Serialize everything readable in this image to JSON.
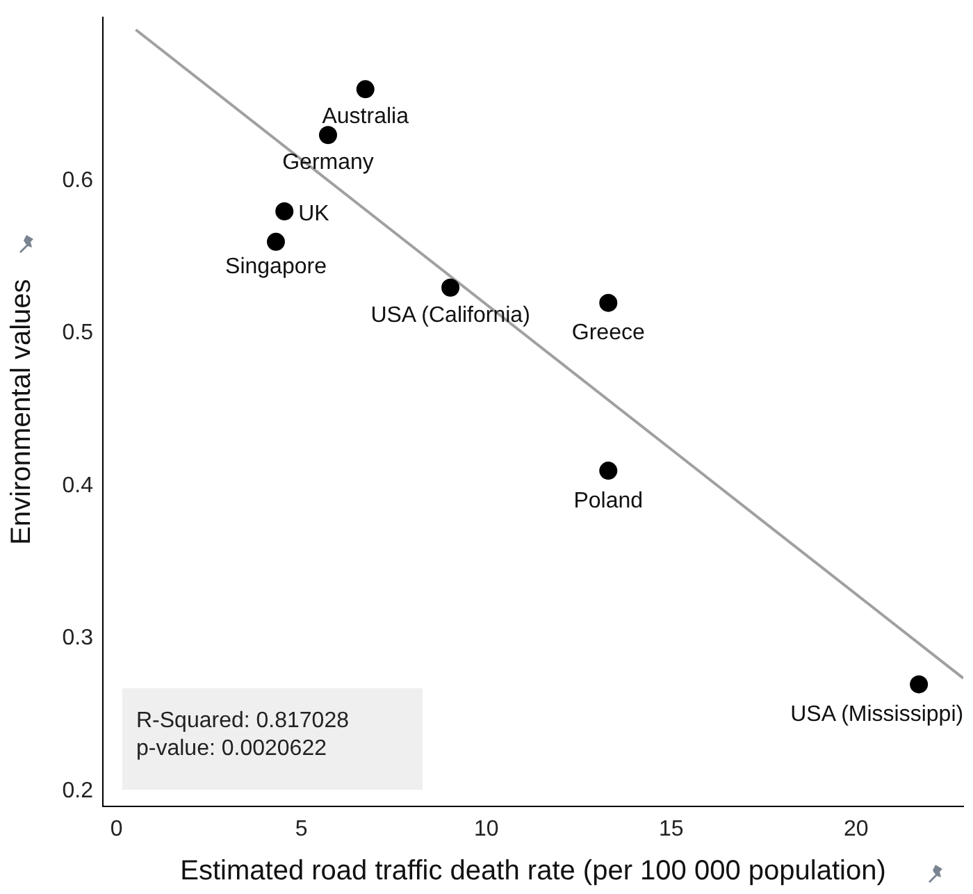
{
  "chart_data": {
    "type": "scatter",
    "xlabel": "Estimated road traffic death rate (per 100 000 population)",
    "ylabel": "Environmental values",
    "xlim": [
      -0.37,
      22.9
    ],
    "xticks": [
      0,
      5,
      10,
      15,
      20
    ],
    "ylim": [
      0.19,
      0.707
    ],
    "yticks": [
      0.2,
      0.3,
      0.4,
      0.5,
      0.6
    ],
    "grid": false,
    "legend": false,
    "series": [
      {
        "marker": "circle",
        "color": "#000000",
        "x": [
          6.73,
          5.72,
          4.54,
          4.31,
          9.03,
          13.3,
          13.3,
          21.7
        ],
        "values": [
          0.66,
          0.63,
          0.58,
          0.56,
          0.53,
          0.52,
          0.41,
          0.27
        ]
      },
      {
        "type": "line",
        "marker": "none",
        "color": "#a0a0a0",
        "x": [
          0.52,
          22.9
        ],
        "values": [
          0.699,
          0.274
        ]
      }
    ],
    "annotations": [
      {
        "text": "Australia",
        "x": 6.73,
        "y": 0.66
      },
      {
        "text": "Germany",
        "x": 5.72,
        "y": 0.63
      },
      {
        "text": "UK",
        "x": 4.54,
        "y": 0.58
      },
      {
        "text": "Singapore",
        "x": 4.31,
        "y": 0.56
      },
      {
        "text": "USA (California)",
        "x": 9.03,
        "y": 0.53
      },
      {
        "text": "Greece",
        "x": 13.3,
        "y": 0.52
      },
      {
        "text": "Poland",
        "x": 13.3,
        "y": 0.41
      },
      {
        "text": "USA (Mississippi)",
        "x": 21.7,
        "y": 0.27
      },
      "R-Squared: 0.817028",
      "p-value: 0.0020622"
    ]
  }
}
